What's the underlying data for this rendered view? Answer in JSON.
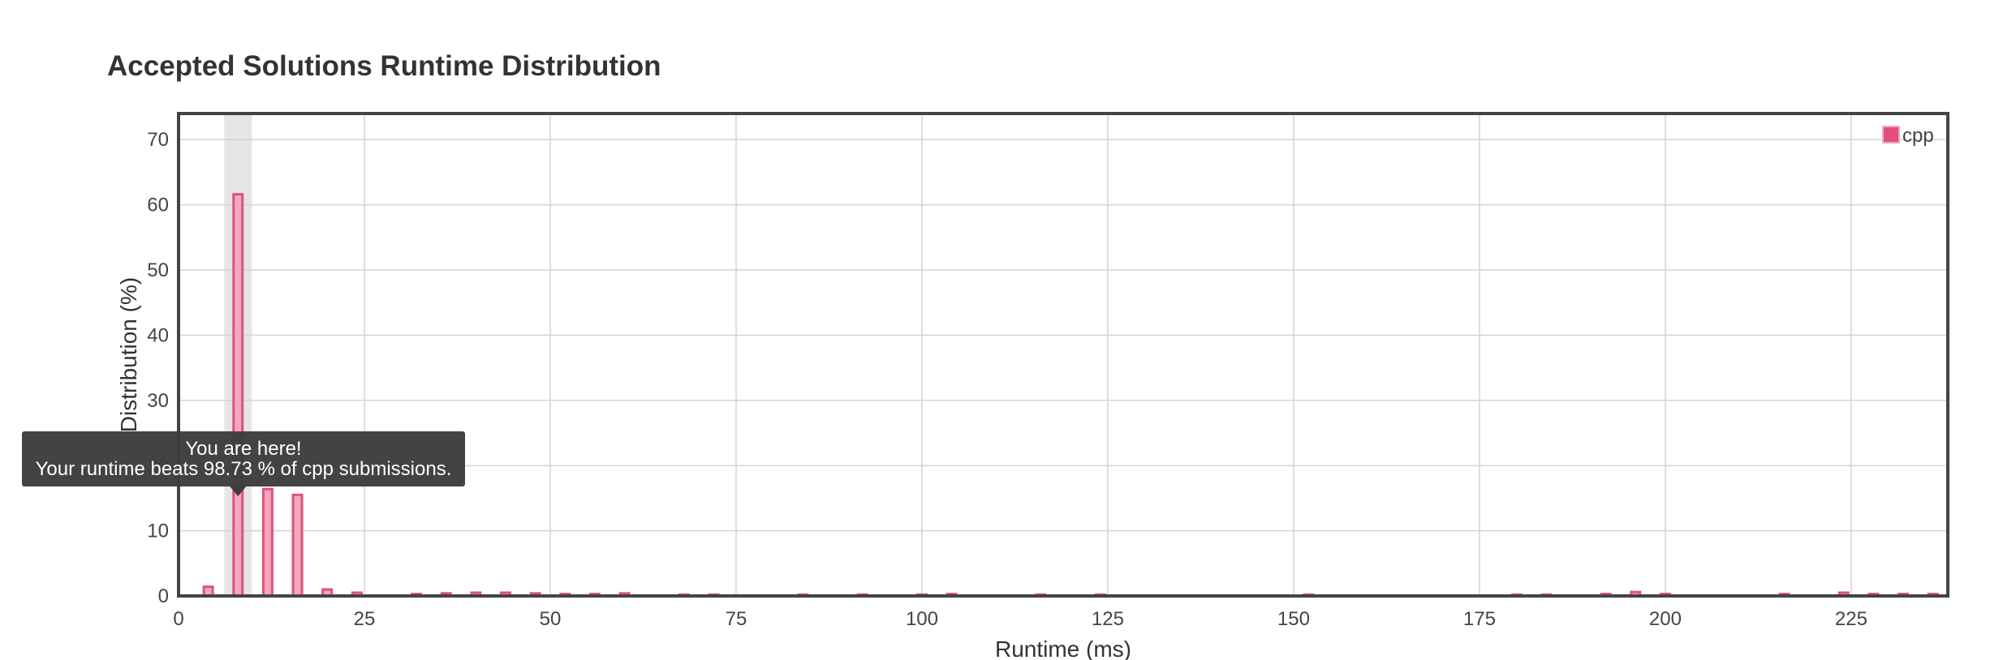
{
  "chart_data": {
    "type": "bar",
    "title": "Accepted Solutions Runtime Distribution",
    "xlabel": "Runtime (ms)",
    "ylabel": "Distribution (%)",
    "xlim": [
      0,
      238
    ],
    "ylim": [
      0,
      74
    ],
    "x_ticks": [
      0,
      25,
      50,
      75,
      100,
      125,
      150,
      175,
      200,
      225
    ],
    "y_ticks": [
      0,
      10,
      20,
      30,
      40,
      50,
      60,
      70
    ],
    "grid": true,
    "legend_position": "top-right",
    "colors": {
      "bar_fill": "#f4a8be",
      "bar_stroke": "#e0507a",
      "highlight_band": "#e5e5e5",
      "tooltip_bg": "#3d3d3d"
    },
    "series": [
      {
        "name": "cpp",
        "points": [
          [
            4,
            1.4
          ],
          [
            8,
            61.6
          ],
          [
            12,
            16.4
          ],
          [
            16,
            15.5
          ],
          [
            20,
            1.0
          ],
          [
            24,
            0.5
          ],
          [
            32,
            0.3
          ],
          [
            36,
            0.4
          ],
          [
            40,
            0.5
          ],
          [
            44,
            0.5
          ],
          [
            48,
            0.4
          ],
          [
            52,
            0.3
          ],
          [
            56,
            0.3
          ],
          [
            60,
            0.4
          ],
          [
            68,
            0.2
          ],
          [
            72,
            0.2
          ],
          [
            84,
            0.2
          ],
          [
            92,
            0.2
          ],
          [
            100,
            0.2
          ],
          [
            104,
            0.3
          ],
          [
            116,
            0.2
          ],
          [
            124,
            0.2
          ],
          [
            152,
            0.2
          ],
          [
            180,
            0.2
          ],
          [
            184,
            0.2
          ],
          [
            192,
            0.3
          ],
          [
            196,
            0.6
          ],
          [
            200,
            0.3
          ],
          [
            216,
            0.3
          ],
          [
            224,
            0.5
          ],
          [
            228,
            0.3
          ],
          [
            232,
            0.3
          ],
          [
            236,
            0.3
          ]
        ]
      }
    ],
    "highlight": {
      "x": 8
    },
    "tooltip": {
      "line1": "You are here!",
      "line2": "Your runtime beats 98.73 % of cpp submissions."
    }
  }
}
